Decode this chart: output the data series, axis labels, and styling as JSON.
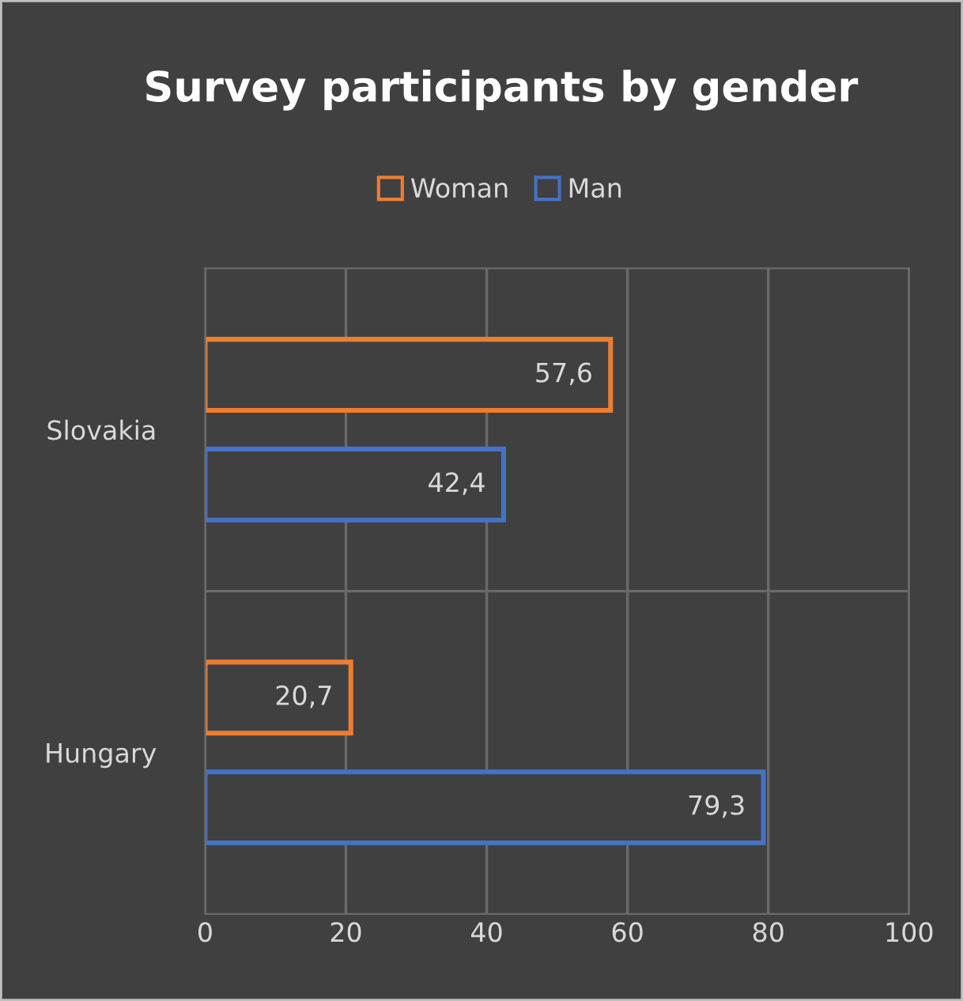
{
  "chart_data": {
    "type": "bar",
    "orientation": "horizontal",
    "title": "Survey participants by gender",
    "categories": [
      "Slovakia",
      "Hungary"
    ],
    "series": [
      {
        "name": "Woman",
        "color": "#ed7d31",
        "values": [
          57.6,
          20.7
        ],
        "value_labels": [
          "57,6",
          "20,7"
        ]
      },
      {
        "name": "Man",
        "color": "#4472c4",
        "values": [
          42.4,
          79.3
        ],
        "value_labels": [
          "42,4",
          "79,3"
        ]
      }
    ],
    "xlim": [
      0,
      100
    ],
    "xticks": [
      0,
      20,
      40,
      60,
      80,
      100
    ],
    "grid": true,
    "legend": "top"
  }
}
